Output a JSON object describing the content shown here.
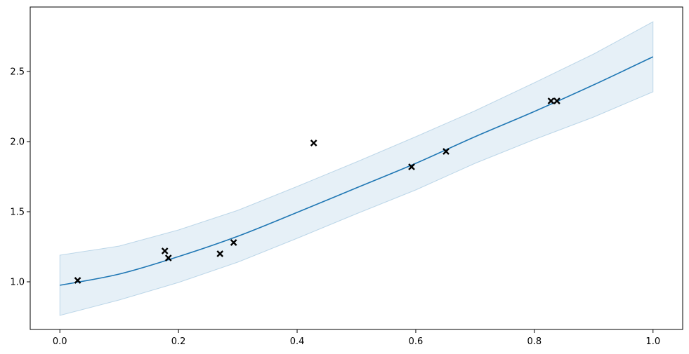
{
  "chart_data": {
    "type": "line",
    "title": "",
    "xlabel": "",
    "ylabel": "",
    "xlim": [
      -0.05,
      1.05
    ],
    "ylim": [
      0.66,
      2.96
    ],
    "grid": false,
    "x_ticks": [
      {
        "value": 0.0,
        "label": "0.0"
      },
      {
        "value": 0.2,
        "label": "0.2"
      },
      {
        "value": 0.4,
        "label": "0.4"
      },
      {
        "value": 0.6,
        "label": "0.6"
      },
      {
        "value": 0.8,
        "label": "0.8"
      },
      {
        "value": 1.0,
        "label": "1.0"
      }
    ],
    "y_ticks": [
      {
        "value": 1.0,
        "label": "1.0"
      },
      {
        "value": 1.5,
        "label": "1.5"
      },
      {
        "value": 2.0,
        "label": "2.0"
      },
      {
        "value": 2.5,
        "label": "2.5"
      }
    ],
    "mean_line": {
      "color": "#1f77b4",
      "x": [
        0.0,
        0.1,
        0.2,
        0.3,
        0.4,
        0.5,
        0.6,
        0.7,
        0.8,
        0.9,
        1.0
      ],
      "y": [
        0.975,
        1.055,
        1.18,
        1.325,
        1.495,
        1.67,
        1.845,
        2.035,
        2.215,
        2.405,
        2.605
      ]
    },
    "confidence_band": {
      "color": "#1f77b4",
      "opacity": 0.11,
      "x": [
        0.0,
        0.1,
        0.2,
        0.3,
        0.4,
        0.5,
        0.6,
        0.7,
        0.8,
        0.9,
        1.0
      ],
      "upper": [
        1.19,
        1.255,
        1.37,
        1.51,
        1.68,
        1.855,
        2.035,
        2.22,
        2.42,
        2.625,
        2.855
      ],
      "lower": [
        0.76,
        0.87,
        0.995,
        1.14,
        1.31,
        1.485,
        1.655,
        1.845,
        2.015,
        2.175,
        2.355
      ]
    },
    "observations": {
      "marker": "x",
      "color": "#000000",
      "points": [
        {
          "x": 0.03,
          "y": 1.01
        },
        {
          "x": 0.177,
          "y": 1.22
        },
        {
          "x": 0.183,
          "y": 1.17
        },
        {
          "x": 0.27,
          "y": 1.2
        },
        {
          "x": 0.293,
          "y": 1.28
        },
        {
          "x": 0.428,
          "y": 1.99
        },
        {
          "x": 0.593,
          "y": 1.82
        },
        {
          "x": 0.651,
          "y": 1.93
        },
        {
          "x": 0.828,
          "y": 2.29
        },
        {
          "x": 0.838,
          "y": 2.29
        }
      ]
    }
  }
}
